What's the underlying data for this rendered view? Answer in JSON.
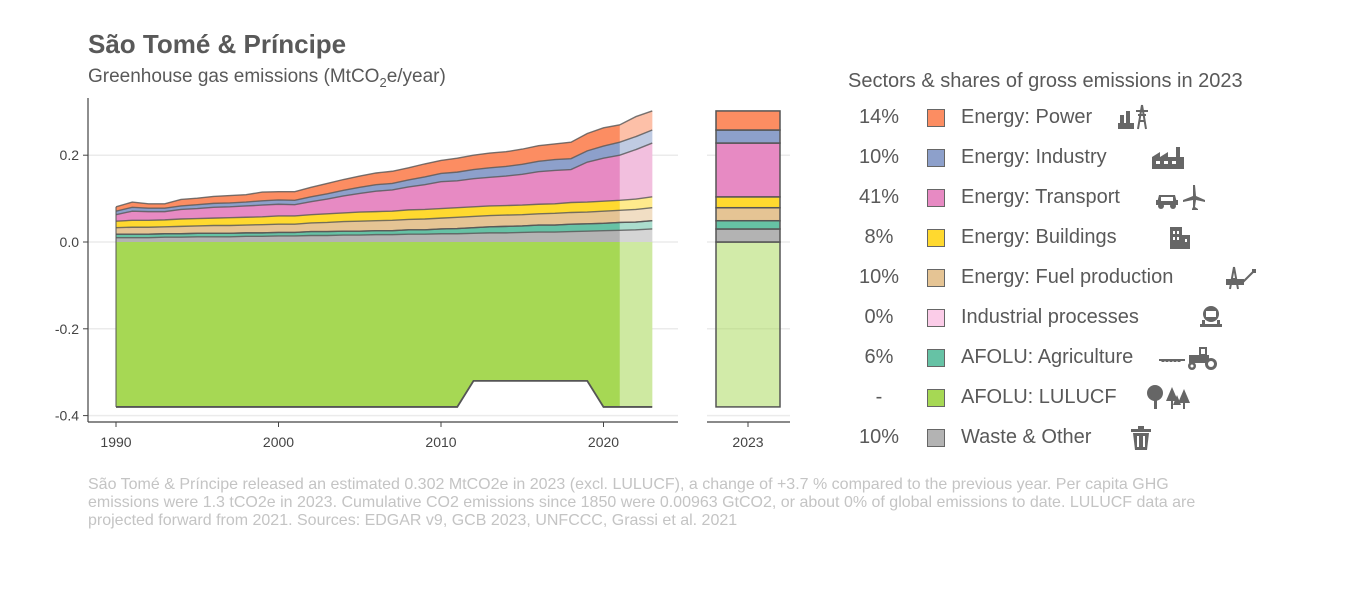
{
  "header": {
    "title": "São Tomé & Príncipe",
    "subtitle_main": "Greenhouse gas emissions (MtCO",
    "subtitle_sub": "2",
    "subtitle_tail": "e/year)"
  },
  "legend": {
    "title": "Sectors & shares of gross emissions in 2023",
    "items": [
      {
        "share": "14%",
        "label": "Energy: Power",
        "color": "#fc8d62",
        "icon": "power-plant-icon"
      },
      {
        "share": "10%",
        "label": "Energy: Industry",
        "color": "#8da0cb",
        "icon": "factory-icon"
      },
      {
        "share": "41%",
        "label": "Energy: Transport",
        "color": "#e78ac3",
        "icon": "car-plane-icon"
      },
      {
        "share": "8%",
        "label": "Energy: Buildings",
        "color": "#ffd92f",
        "icon": "buildings-icon"
      },
      {
        "share": "10%",
        "label": "Energy: Fuel production",
        "color": "#e5c494",
        "icon": "oil-rig-icon"
      },
      {
        "share": "0%",
        "label": "Industrial processes",
        "color": "#fbcce8",
        "icon": "cement-mixer-icon"
      },
      {
        "share": "6%",
        "label": "AFOLU: Agriculture",
        "color": "#66c2a5",
        "icon": "tractor-icon"
      },
      {
        "share": "-",
        "label": "AFOLU: LULUCF",
        "color": "#a6d854",
        "icon": "trees-icon"
      },
      {
        "share": "10%",
        "label": "Waste & Other",
        "color": "#b3b3b3",
        "icon": "trash-icon"
      }
    ]
  },
  "footer": "São Tomé & Príncipe released an estimated 0.302 MtCO2e in 2023 (excl. LULUCF), a change of +3.7 % compared to the previous year. Per capita GHG emissions were 1.3 tCO2e in 2023. Cumulative CO2 emissions since 1850 were 0.00963 GtCO2, or about 0% of global emissions to date. LULUCF data are projected forward from 2021. Sources: EDGAR v9, GCB 2023, UNFCCC, Grassi et al. 2021",
  "chart_data": {
    "type": "area",
    "x": [
      1990,
      1991,
      1992,
      1993,
      1994,
      1995,
      1996,
      1997,
      1998,
      1999,
      2000,
      2001,
      2002,
      2003,
      2004,
      2005,
      2006,
      2007,
      2008,
      2009,
      2010,
      2011,
      2012,
      2013,
      2014,
      2015,
      2016,
      2017,
      2018,
      2019,
      2020,
      2021,
      2022,
      2023
    ],
    "ylim": [
      -0.4,
      0.32
    ],
    "y_ticks": [
      -0.4,
      -0.2,
      0.0,
      0.2
    ],
    "y_tick_labels": [
      "-0.4",
      "-0.2",
      "0.0",
      "0.2"
    ],
    "x_ticks": [
      1990,
      2000,
      2010,
      2020
    ],
    "bar_category": "2023",
    "projected_from": 2021,
    "grid": true,
    "legend_position": "right",
    "series": [
      {
        "name": "Waste & Other",
        "color": "#b3b3b3",
        "values": [
          0.01,
          0.01,
          0.01,
          0.011,
          0.011,
          0.012,
          0.012,
          0.012,
          0.013,
          0.013,
          0.014,
          0.014,
          0.015,
          0.015,
          0.016,
          0.016,
          0.017,
          0.017,
          0.018,
          0.018,
          0.019,
          0.019,
          0.02,
          0.021,
          0.021,
          0.022,
          0.023,
          0.023,
          0.024,
          0.025,
          0.026,
          0.027,
          0.028,
          0.03
        ]
      },
      {
        "name": "AFOLU: Agriculture",
        "color": "#66c2a5",
        "values": [
          0.008,
          0.008,
          0.008,
          0.008,
          0.008,
          0.008,
          0.008,
          0.008,
          0.008,
          0.008,
          0.008,
          0.008,
          0.009,
          0.009,
          0.009,
          0.009,
          0.009,
          0.009,
          0.01,
          0.01,
          0.011,
          0.012,
          0.013,
          0.014,
          0.015,
          0.015,
          0.016,
          0.016,
          0.017,
          0.017,
          0.017,
          0.018,
          0.018,
          0.019
        ]
      },
      {
        "name": "Industrial processes",
        "color": "#fbcce8",
        "values": [
          0,
          0,
          0,
          0,
          0,
          0,
          0,
          0,
          0,
          0,
          0,
          0,
          0,
          0,
          0,
          0,
          0,
          0,
          0,
          0,
          0,
          0,
          0,
          0,
          0,
          0,
          0,
          0,
          0,
          0,
          0,
          0,
          0,
          0
        ]
      },
      {
        "name": "Energy: Fuel production",
        "color": "#e5c494",
        "values": [
          0.015,
          0.016,
          0.016,
          0.016,
          0.017,
          0.017,
          0.018,
          0.018,
          0.018,
          0.019,
          0.019,
          0.019,
          0.02,
          0.021,
          0.022,
          0.023,
          0.023,
          0.024,
          0.024,
          0.025,
          0.025,
          0.026,
          0.026,
          0.026,
          0.026,
          0.026,
          0.026,
          0.027,
          0.027,
          0.027,
          0.028,
          0.028,
          0.029,
          0.03
        ]
      },
      {
        "name": "Energy: Buildings",
        "color": "#ffd92f",
        "values": [
          0.015,
          0.016,
          0.016,
          0.016,
          0.017,
          0.017,
          0.017,
          0.018,
          0.018,
          0.018,
          0.019,
          0.019,
          0.019,
          0.02,
          0.02,
          0.021,
          0.021,
          0.021,
          0.022,
          0.022,
          0.022,
          0.022,
          0.022,
          0.022,
          0.022,
          0.022,
          0.022,
          0.022,
          0.023,
          0.023,
          0.023,
          0.023,
          0.024,
          0.025
        ]
      },
      {
        "name": "Energy: Transport",
        "color": "#e78ac3",
        "values": [
          0.015,
          0.021,
          0.02,
          0.019,
          0.022,
          0.023,
          0.025,
          0.025,
          0.026,
          0.027,
          0.027,
          0.026,
          0.03,
          0.034,
          0.039,
          0.043,
          0.047,
          0.049,
          0.053,
          0.057,
          0.062,
          0.062,
          0.065,
          0.066,
          0.068,
          0.071,
          0.075,
          0.077,
          0.076,
          0.092,
          0.099,
          0.104,
          0.114,
          0.124
        ]
      },
      {
        "name": "Energy: Industry",
        "color": "#8da0cb",
        "values": [
          0.008,
          0.009,
          0.008,
          0.008,
          0.008,
          0.009,
          0.009,
          0.009,
          0.009,
          0.01,
          0.01,
          0.01,
          0.011,
          0.012,
          0.013,
          0.014,
          0.015,
          0.015,
          0.016,
          0.018,
          0.019,
          0.02,
          0.021,
          0.022,
          0.022,
          0.023,
          0.024,
          0.025,
          0.025,
          0.026,
          0.028,
          0.03,
          0.03,
          0.03
        ]
      },
      {
        "name": "Energy: Power",
        "color": "#fc8d62",
        "values": [
          0.01,
          0.012,
          0.01,
          0.01,
          0.015,
          0.015,
          0.016,
          0.017,
          0.017,
          0.02,
          0.019,
          0.02,
          0.022,
          0.024,
          0.025,
          0.026,
          0.027,
          0.028,
          0.028,
          0.03,
          0.03,
          0.032,
          0.033,
          0.034,
          0.034,
          0.035,
          0.036,
          0.036,
          0.038,
          0.04,
          0.042,
          0.04,
          0.046,
          0.044
        ]
      },
      {
        "name": "AFOLU: LULUCF",
        "color": "#a6d854",
        "values": [
          -0.38,
          -0.38,
          -0.38,
          -0.38,
          -0.38,
          -0.38,
          -0.38,
          -0.38,
          -0.38,
          -0.38,
          -0.38,
          -0.38,
          -0.38,
          -0.38,
          -0.38,
          -0.38,
          -0.38,
          -0.38,
          -0.38,
          -0.38,
          -0.38,
          -0.38,
          -0.32,
          -0.32,
          -0.32,
          -0.32,
          -0.32,
          -0.32,
          -0.32,
          -0.32,
          -0.38,
          -0.38,
          -0.38,
          -0.38
        ]
      }
    ]
  }
}
